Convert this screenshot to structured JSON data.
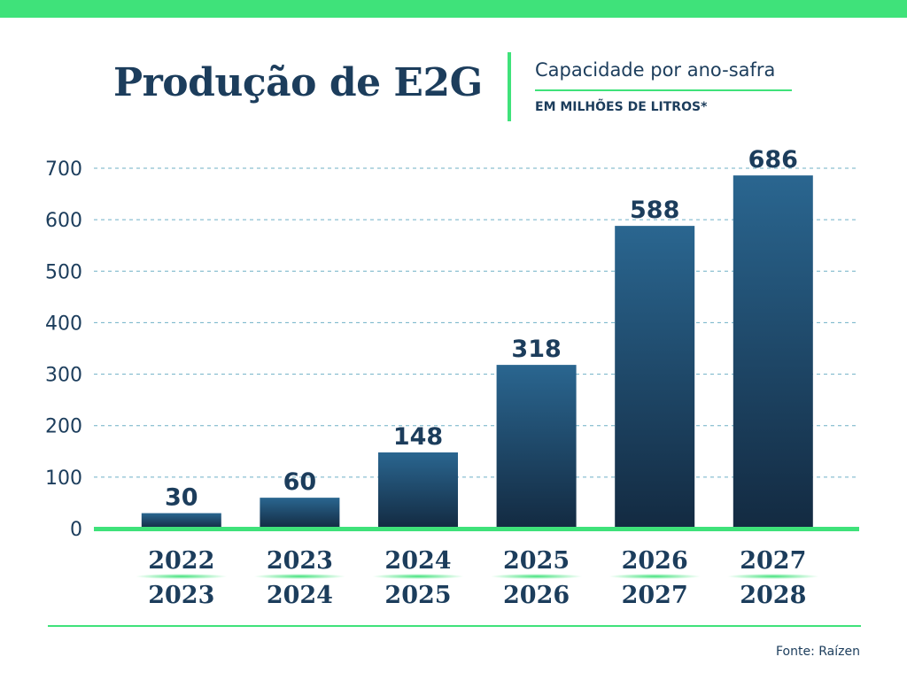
{
  "header": {
    "title": "Produção de E2G",
    "subtitle": "Capacidade por ano-safra",
    "unit": "EM MILHÕES DE LITROS*"
  },
  "footer": {
    "source": "Fonte: Raízen"
  },
  "colors": {
    "accent": "#3fe27a",
    "dark_blue": "#1c3d5c",
    "bar_top": "#2a6690",
    "bar_bottom": "#132a41",
    "grid": "#6fb0c6",
    "accent_light": "#b2ecc8"
  },
  "chart_data": {
    "type": "bar",
    "categories": [
      [
        "2022",
        "2023"
      ],
      [
        "2023",
        "2024"
      ],
      [
        "2024",
        "2025"
      ],
      [
        "2025",
        "2026"
      ],
      [
        "2026",
        "2027"
      ],
      [
        "2027",
        "2028"
      ]
    ],
    "values": [
      30,
      60,
      148,
      318,
      588,
      686
    ],
    "yticks": [
      0,
      100,
      200,
      300,
      400,
      500,
      600,
      700
    ],
    "ylim": [
      0,
      700
    ],
    "grid": "dashed horizontal",
    "legend": "none",
    "data_labels": true
  }
}
